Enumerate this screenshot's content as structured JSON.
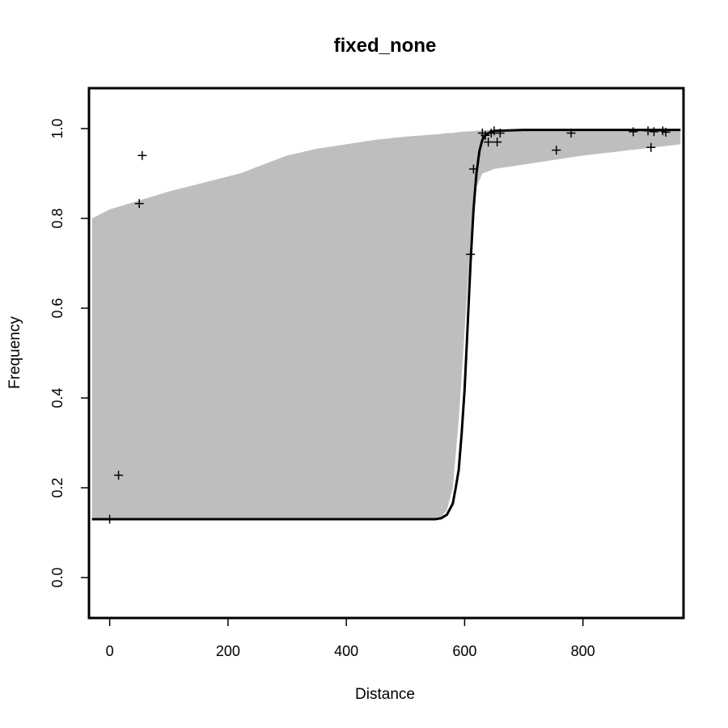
{
  "chart_data": {
    "type": "line",
    "title": "fixed_none",
    "xlabel": "Distance",
    "ylabel": "Frequency",
    "xlim": [
      -35,
      970
    ],
    "ylim": [
      -0.09,
      1.09
    ],
    "x_ticks": [
      0,
      200,
      400,
      600,
      800
    ],
    "y_ticks": [
      0.0,
      0.2,
      0.4,
      0.6,
      0.8,
      1.0
    ],
    "x_tick_labels": [
      "0",
      "200",
      "400",
      "600",
      "800"
    ],
    "y_tick_labels": [
      "0.0",
      "0.2",
      "0.4",
      "0.6",
      "0.8",
      "1.0"
    ],
    "band_color": "#bebebe",
    "line_color": "#000000",
    "band": {
      "x": [
        -30,
        0,
        100,
        220,
        260,
        300,
        350,
        400,
        450,
        500,
        550,
        560,
        570,
        580,
        590,
        600,
        610,
        620,
        630,
        640,
        650,
        700,
        800,
        900,
        965
      ],
      "upper": [
        0.8,
        0.82,
        0.86,
        0.9,
        0.92,
        0.94,
        0.955,
        0.965,
        0.975,
        0.982,
        0.987,
        0.988,
        0.99,
        0.99,
        0.992,
        0.993,
        0.994,
        0.995,
        0.996,
        0.997,
        0.997,
        0.997,
        0.997,
        0.997,
        0.997
      ],
      "lower": [
        0.13,
        0.13,
        0.13,
        0.13,
        0.13,
        0.13,
        0.13,
        0.13,
        0.13,
        0.13,
        0.13,
        0.135,
        0.15,
        0.2,
        0.35,
        0.55,
        0.75,
        0.87,
        0.9,
        0.905,
        0.91,
        0.92,
        0.94,
        0.955,
        0.965
      ]
    },
    "series": [
      {
        "x": [
          -30,
          0,
          200,
          400,
          500,
          550,
          560,
          570,
          580,
          585,
          590,
          595,
          600,
          605,
          610,
          615,
          620,
          625,
          630,
          635,
          640,
          650,
          700,
          800,
          900,
          965
        ],
        "values": [
          0.13,
          0.13,
          0.13,
          0.13,
          0.13,
          0.13,
          0.132,
          0.14,
          0.165,
          0.2,
          0.24,
          0.32,
          0.42,
          0.56,
          0.7,
          0.82,
          0.9,
          0.95,
          0.975,
          0.985,
          0.99,
          0.995,
          0.997,
          0.997,
          0.997,
          0.997
        ]
      }
    ],
    "points": {
      "x": [
        0,
        15,
        50,
        55,
        610,
        615,
        630,
        635,
        640,
        645,
        650,
        655,
        660,
        755,
        780,
        885,
        910,
        915,
        920,
        935,
        940
      ],
      "y": [
        0.13,
        0.228,
        0.833,
        0.94,
        0.72,
        0.91,
        0.99,
        0.985,
        0.97,
        0.99,
        0.995,
        0.97,
        0.99,
        0.952,
        0.99,
        0.993,
        0.995,
        0.958,
        0.993,
        0.995,
        0.992
      ]
    }
  }
}
